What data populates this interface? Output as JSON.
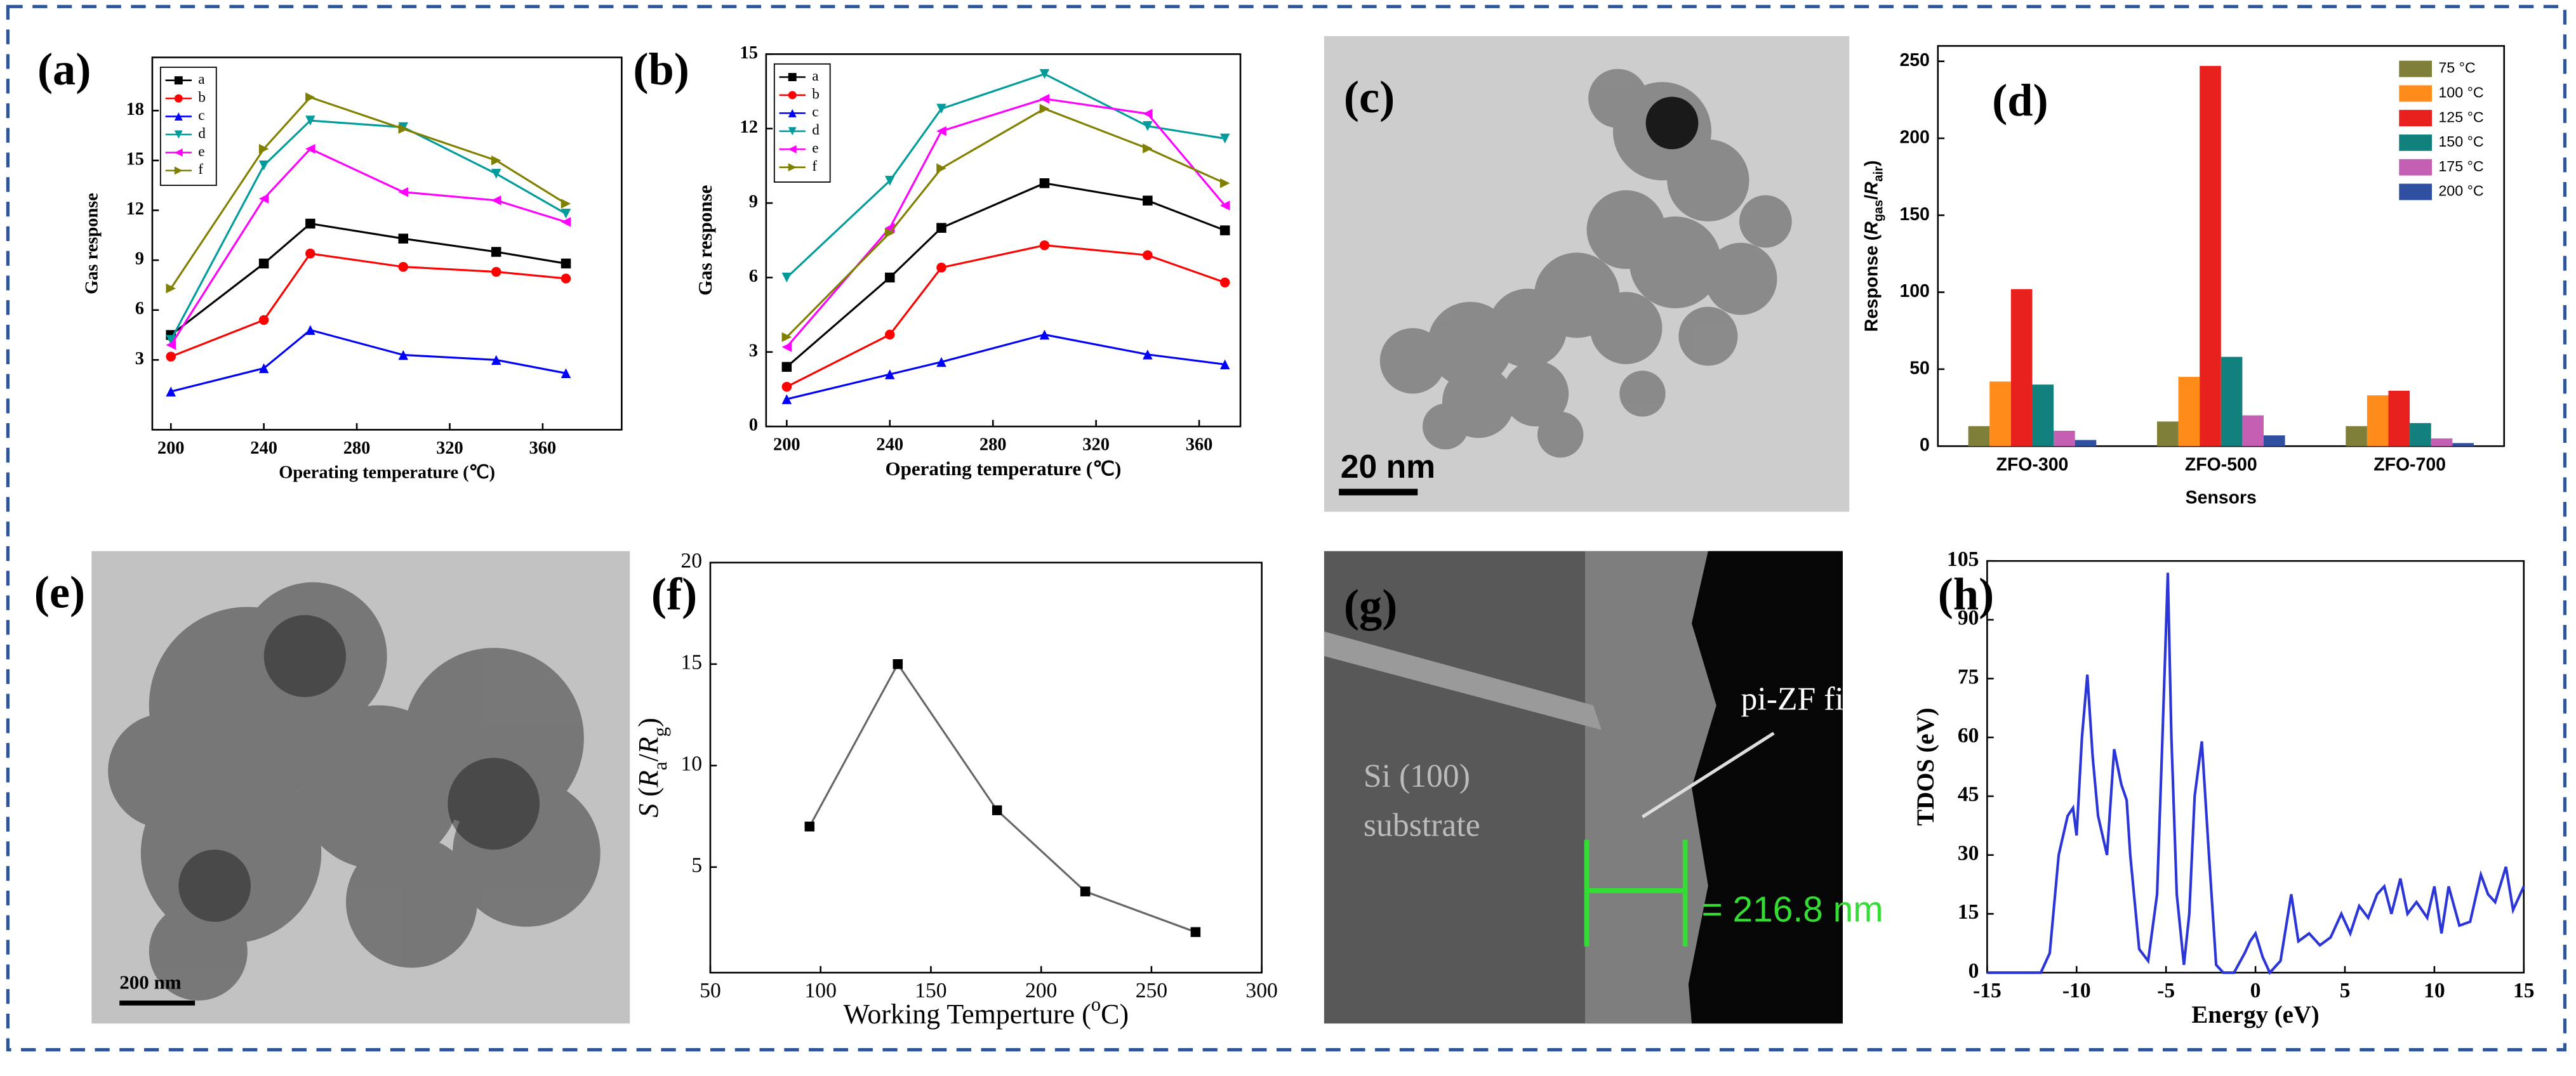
{
  "chart_data": [
    {
      "type": "line",
      "panel_label": "(a)",
      "xlabel": "Operating temperature (℃)",
      "ylabel": "Gas response",
      "x": [
        200,
        240,
        260,
        300,
        340,
        370
      ],
      "xlim": [
        192,
        394
      ],
      "xticks": [
        200,
        240,
        280,
        320,
        360
      ],
      "ylim": [
        -1.2,
        21.2
      ],
      "yticks": [
        3,
        6,
        9,
        12,
        15,
        18
      ],
      "legend": "upper left",
      "series": [
        {
          "name": "a",
          "color": "#000000",
          "marker": "square",
          "values": [
            4.5,
            8.8,
            11.2,
            10.3,
            9.5,
            8.8
          ]
        },
        {
          "name": "b",
          "color": "#ff0000",
          "marker": "circle",
          "values": [
            3.2,
            5.4,
            9.4,
            8.6,
            8.3,
            7.9
          ]
        },
        {
          "name": "c",
          "color": "#0000ff",
          "marker": "triangle-up",
          "values": [
            1.1,
            2.5,
            4.8,
            3.3,
            3.0,
            2.2
          ]
        },
        {
          "name": "d",
          "color": "#009b9b",
          "marker": "triangle-down",
          "values": [
            4.2,
            14.7,
            17.4,
            17.0,
            14.2,
            11.8
          ]
        },
        {
          "name": "e",
          "color": "#ff00ff",
          "marker": "triangle-left",
          "values": [
            3.9,
            12.7,
            15.7,
            13.1,
            12.6,
            11.3
          ]
        },
        {
          "name": "f",
          "color": "#808000",
          "marker": "triangle-right",
          "values": [
            7.3,
            15.7,
            18.8,
            16.9,
            15.0,
            12.4
          ]
        }
      ]
    },
    {
      "type": "line",
      "panel_label": "(b)",
      "xlabel": "Operating temperature (℃)",
      "ylabel": "Gas response",
      "x": [
        200,
        240,
        260,
        300,
        340,
        370
      ],
      "xlim": [
        192,
        376
      ],
      "xticks": [
        200,
        240,
        280,
        320,
        360
      ],
      "ylim": [
        0,
        15
      ],
      "yticks": [
        0,
        3,
        6,
        9,
        12,
        15
      ],
      "legend": "upper left",
      "series": [
        {
          "name": "a",
          "color": "#000000",
          "marker": "square",
          "values": [
            2.4,
            6.0,
            8.0,
            9.8,
            9.1,
            7.9
          ]
        },
        {
          "name": "b",
          "color": "#ff0000",
          "marker": "circle",
          "values": [
            1.6,
            3.7,
            6.4,
            7.3,
            6.9,
            5.8
          ]
        },
        {
          "name": "c",
          "color": "#0000ff",
          "marker": "triangle-up",
          "values": [
            1.1,
            2.1,
            2.6,
            3.7,
            2.9,
            2.5
          ]
        },
        {
          "name": "d",
          "color": "#009b9b",
          "marker": "triangle-down",
          "values": [
            6.0,
            9.9,
            12.8,
            14.2,
            12.1,
            11.6
          ]
        },
        {
          "name": "e",
          "color": "#ff00ff",
          "marker": "triangle-left",
          "values": [
            3.2,
            8.0,
            11.9,
            13.2,
            12.6,
            8.9
          ]
        },
        {
          "name": "f",
          "color": "#808000",
          "marker": "triangle-right",
          "values": [
            3.6,
            7.8,
            10.4,
            12.8,
            11.2,
            9.8
          ]
        }
      ]
    },
    {
      "type": "bar",
      "panel_label": "(d)",
      "xlabel": "Sensors",
      "ylabel_parts": [
        {
          "text": "Response ("
        },
        {
          "text": "R",
          "style": "italic"
        },
        {
          "text": "gas",
          "style": "sub"
        },
        {
          "text": "/"
        },
        {
          "text": "R",
          "style": "italic"
        },
        {
          "text": "air",
          "style": "sub"
        },
        {
          "text": ")"
        }
      ],
      "categories": [
        "ZFO-300",
        "ZFO-500",
        "ZFO-700"
      ],
      "ylim": [
        0,
        260
      ],
      "yticks": [
        0,
        50,
        100,
        150,
        200,
        250
      ],
      "legend": "upper right",
      "series": [
        {
          "name": "75 °C",
          "color": "#7f7f3a",
          "values": [
            13,
            16,
            13
          ]
        },
        {
          "name": "100 °C",
          "color": "#ff8c1a",
          "values": [
            42,
            45,
            33
          ]
        },
        {
          "name": "125 °C",
          "color": "#e8201e",
          "values": [
            102,
            247,
            36
          ]
        },
        {
          "name": "150 °C",
          "color": "#12807c",
          "values": [
            40,
            58,
            15
          ]
        },
        {
          "name": "175 °C",
          "color": "#c45fb4",
          "values": [
            10,
            20,
            5
          ]
        },
        {
          "name": "200 °C",
          "color": "#2f4fa0",
          "values": [
            4,
            7,
            2
          ]
        }
      ]
    },
    {
      "type": "line",
      "panel_label": "(f)",
      "xlabel_parts": [
        {
          "text": "Working Temperture ("
        },
        {
          "text": "o",
          "style": "sup"
        },
        {
          "text": "C)"
        }
      ],
      "ylabel_parts": [
        {
          "text": "S",
          "style": "italic"
        },
        {
          "text": " ("
        },
        {
          "text": "R",
          "style": "italic"
        },
        {
          "text": "a",
          "style": "sub"
        },
        {
          "text": "/"
        },
        {
          "text": "R",
          "style": "italic"
        },
        {
          "text": "g",
          "style": "sub"
        },
        {
          "text": ")"
        }
      ],
      "x": [
        95,
        135,
        180,
        220,
        270
      ],
      "xlim": [
        50,
        300
      ],
      "xticks": [
        50,
        100,
        150,
        200,
        250,
        300
      ],
      "ylim": [
        -0.2,
        20
      ],
      "yticks": [
        5,
        10,
        15,
        20
      ],
      "series": [
        {
          "color": "#000000",
          "line_color": "#666666",
          "marker": "square",
          "values": [
            7.0,
            15.0,
            7.8,
            3.8,
            1.8
          ]
        }
      ]
    },
    {
      "type": "line",
      "panel_label": "(h)",
      "xlabel": "Energy (eV)",
      "ylabel": "TDOS (eV)",
      "x": [
        -15,
        -12,
        -11.5,
        -11,
        -10.5,
        -10.2,
        -10,
        -9.7,
        -9.4,
        -9.1,
        -8.8,
        -8.3,
        -7.9,
        -7.5,
        -7.2,
        -7,
        -6.5,
        -6,
        -5.5,
        -5.2,
        -4.9,
        -4.7,
        -4.4,
        -4,
        -3.7,
        -3.4,
        -3,
        -2.6,
        -2.2,
        -1.8,
        -1.2,
        -0.6,
        -0.3,
        0,
        0.4,
        0.8,
        1.4,
        2,
        2.4,
        3,
        3.6,
        4.2,
        4.8,
        5.3,
        5.8,
        6.3,
        6.8,
        7.2,
        7.6,
        8.1,
        8.5,
        9,
        9.6,
        10,
        10.4,
        10.8,
        11.4,
        12,
        12.6,
        13,
        13.4,
        14,
        14.4,
        15
      ],
      "xlim": [
        -15,
        15
      ],
      "xticks": [
        -15,
        -10,
        -5,
        0,
        5,
        10,
        15
      ],
      "ylim": [
        0,
        105
      ],
      "yticks": [
        0,
        15,
        30,
        45,
        60,
        75,
        90,
        105
      ],
      "series": [
        {
          "color": "#2b35d8",
          "values": [
            0,
            0,
            5,
            30,
            40,
            42,
            35,
            60,
            76,
            55,
            40,
            30,
            57,
            48,
            44,
            30,
            6,
            3,
            20,
            60,
            102,
            60,
            20,
            2,
            15,
            45,
            59,
            30,
            2,
            0,
            0,
            5,
            8,
            10,
            4,
            0,
            3,
            20,
            8,
            10,
            7,
            9,
            15,
            10,
            17,
            14,
            20,
            22,
            15,
            24,
            15,
            18,
            14,
            22,
            10,
            22,
            12,
            13,
            25,
            20,
            18,
            27,
            16,
            22
          ]
        }
      ]
    }
  ],
  "images": [
    {
      "panel_label": "(c)",
      "scale_bar": "20 nm"
    },
    {
      "panel_label": "(e)",
      "scale_bar": "200 nm"
    },
    {
      "panel_label": "(g)",
      "labels": [
        "Si (100)",
        "substrate",
        "pi-ZF film"
      ],
      "measure": "= 216.8 nm"
    }
  ]
}
